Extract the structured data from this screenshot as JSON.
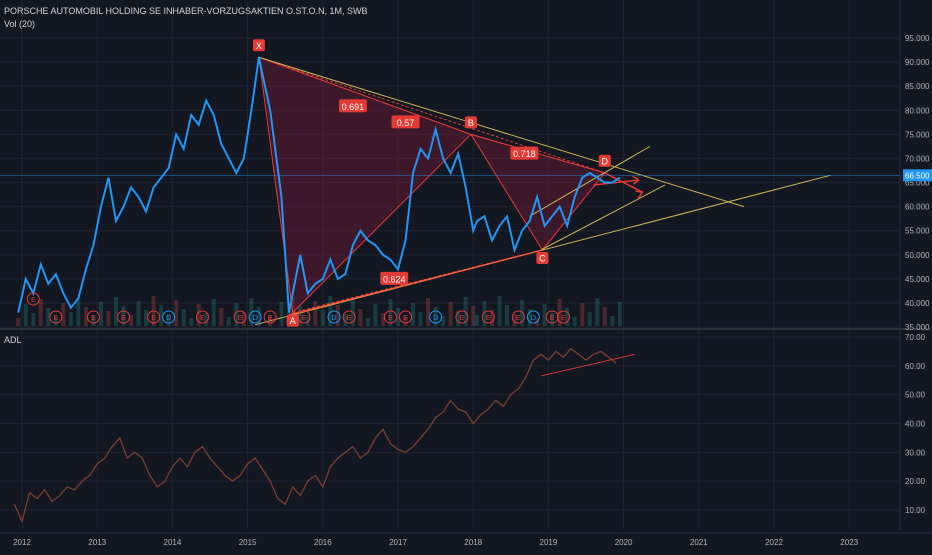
{
  "header": {
    "title": "PORSCHE AUTOMOBIL HOLDING SE INHABER-VORZUGSAKTIEN O.ST.O.N, 1M, SWB",
    "volume_label": "Vol (20)"
  },
  "colors": {
    "background": "#131722",
    "grid": "#1f2330",
    "price_line": "#2196f3",
    "pattern_fill": "#8b1a3a",
    "pattern_line": "#e53935",
    "trendline": "#c9b458",
    "adl_line": "#7a3d32",
    "axis_text": "#b2b5be"
  },
  "chart_data": [
    {
      "type": "line",
      "title": "PORSCHE AUTOMOBIL HOLDING SE INHABER-VORZUGSAKTIEN O.ST.O.N, 1M, SWB",
      "yaxis": {
        "ticks": [
          "35.000",
          "40.000",
          "45.000",
          "50.000",
          "55.000",
          "60.000",
          "65.000",
          "70.000",
          "75.000",
          "80.000",
          "85.000",
          "90.000",
          "95.000"
        ],
        "range": [
          32,
          96
        ]
      },
      "xaxis": {
        "ticks": [
          "2012",
          "2013",
          "2014",
          "2015",
          "2016",
          "2017",
          "2018",
          "2019",
          "2020",
          "2021",
          "2022",
          "2023"
        ]
      },
      "last_price_label": "66.500",
      "series": [
        {
          "values_t": [
            2011.95,
            2012.05,
            2012.15,
            2012.25,
            2012.35,
            2012.45,
            2012.55,
            2012.65,
            2012.75,
            2012.85,
            2012.95,
            2013.05,
            2013.15,
            2013.25,
            2013.35,
            2013.45,
            2013.55,
            2013.65,
            2013.75,
            2013.85,
            2013.95,
            2014.05,
            2014.15,
            2014.25,
            2014.35,
            2014.45,
            2014.55,
            2014.65,
            2014.75,
            2014.85,
            2014.95,
            2015.05,
            2015.15,
            2015.3,
            2015.45,
            2015.55,
            2015.6,
            2015.7,
            2015.8,
            2015.9,
            2016.0,
            2016.1,
            2016.2,
            2016.3,
            2016.4,
            2016.5,
            2016.6,
            2016.7,
            2016.8,
            2016.9,
            2017.0,
            2017.1,
            2017.2,
            2017.3,
            2017.4,
            2017.5,
            2017.6,
            2017.7,
            2017.8,
            2017.9,
            2018.0,
            2018.05,
            2018.15,
            2018.25,
            2018.35,
            2018.45,
            2018.55,
            2018.65,
            2018.75,
            2018.85,
            2018.95,
            2019.05,
            2019.15,
            2019.25,
            2019.35,
            2019.45,
            2019.55,
            2019.65,
            2019.75,
            2019.85,
            2019.95
          ],
          "values": [
            38,
            45,
            42,
            48,
            44,
            46,
            42,
            39,
            41,
            47,
            52,
            60,
            66,
            57,
            60,
            64,
            62,
            59,
            64,
            66,
            68,
            75,
            72,
            79,
            77,
            82,
            79,
            73,
            70,
            67,
            70,
            80,
            91,
            80,
            62,
            38,
            42,
            50,
            42,
            44,
            45,
            49,
            45,
            46,
            52,
            55,
            53,
            52,
            50,
            49,
            47,
            53,
            67,
            72,
            70,
            76,
            70,
            67,
            71,
            64,
            55,
            57,
            58,
            53,
            56,
            58,
            51,
            55,
            57,
            62,
            56,
            58,
            60,
            56,
            62,
            66,
            67,
            66,
            65,
            65,
            66
          ],
          "note": "monthly close line (blue); t in years"
        }
      ],
      "pattern_points": [
        {
          "label": "X",
          "t": 2015.15,
          "value": 91
        },
        {
          "label": "A",
          "t": 2015.6,
          "value": 38
        },
        {
          "label": "B",
          "t": 2017.97,
          "value": 75
        },
        {
          "label": "C",
          "t": 2018.92,
          "value": 51
        },
        {
          "label": "D",
          "t": 2019.75,
          "value": 67
        }
      ],
      "ratios": [
        "0.691",
        "0.57",
        "0.718",
        "0.624"
      ],
      "event_markers": [
        "E",
        "E",
        "E",
        "E",
        "E",
        "D",
        "E",
        "E",
        "D",
        "E",
        "E",
        "D",
        "E",
        "E",
        "E",
        "D",
        "E",
        "E",
        "E",
        "D",
        "E",
        "E"
      ]
    },
    {
      "type": "line",
      "title": "ADL",
      "yaxis": {
        "ticks": [
          "10.00",
          "20.00",
          "30.00",
          "40.00",
          "50.00",
          "60.00",
          "70.00"
        ],
        "range": [
          0,
          72
        ]
      },
      "series": [
        {
          "values_t": [
            2011.9,
            2012.0,
            2012.1,
            2012.2,
            2012.3,
            2012.4,
            2012.5,
            2012.6,
            2012.7,
            2012.8,
            2012.9,
            2013.0,
            2013.1,
            2013.2,
            2013.3,
            2013.4,
            2013.5,
            2013.6,
            2013.7,
            2013.8,
            2013.9,
            2014.0,
            2014.1,
            2014.2,
            2014.3,
            2014.4,
            2014.5,
            2014.6,
            2014.7,
            2014.8,
            2014.9,
            2015.0,
            2015.1,
            2015.2,
            2015.3,
            2015.4,
            2015.5,
            2015.6,
            2015.7,
            2015.8,
            2015.9,
            2016.0,
            2016.1,
            2016.2,
            2016.3,
            2016.4,
            2016.5,
            2016.6,
            2016.7,
            2016.8,
            2016.9,
            2017.0,
            2017.1,
            2017.2,
            2017.3,
            2017.4,
            2017.5,
            2017.6,
            2017.7,
            2017.8,
            2017.9,
            2018.0,
            2018.1,
            2018.2,
            2018.3,
            2018.4,
            2018.5,
            2018.6,
            2018.7,
            2018.8,
            2018.9,
            2019.0,
            2019.1,
            2019.2,
            2019.3,
            2019.4,
            2019.5,
            2019.6,
            2019.7,
            2019.8,
            2019.9
          ],
          "values": [
            12,
            6,
            16,
            14,
            17,
            13,
            15,
            18,
            17,
            20,
            22,
            26,
            28,
            32,
            35,
            28,
            30,
            28,
            22,
            18,
            20,
            25,
            28,
            25,
            30,
            32,
            28,
            25,
            22,
            20,
            22,
            26,
            28,
            24,
            20,
            14,
            12,
            18,
            15,
            20,
            22,
            18,
            25,
            28,
            30,
            32,
            28,
            30,
            35,
            38,
            33,
            31,
            30,
            32,
            35,
            38,
            42,
            44,
            48,
            45,
            44,
            40,
            43,
            45,
            48,
            46,
            50,
            52,
            56,
            62,
            64,
            62,
            65,
            63,
            66,
            64,
            62,
            64,
            65,
            63,
            61
          ],
          "note": "ADL line (brown)"
        }
      ]
    }
  ],
  "labels": {
    "adl_title": "ADL"
  }
}
